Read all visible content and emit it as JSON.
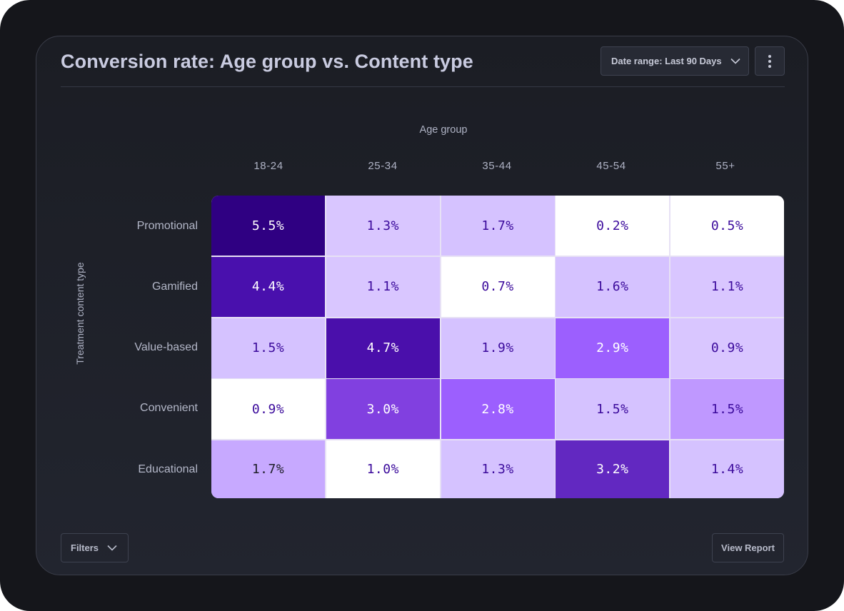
{
  "header": {
    "title": "Conversion rate: Age group vs. Content type",
    "date_range_label": "Date range: Last 90 Days",
    "date_range_icon": "chevron-down-icon",
    "more_icon": "more-vertical-icon"
  },
  "footer": {
    "filters_label": "Filters",
    "filters_icon": "chevron-down-icon",
    "view_report_label": "View Report"
  },
  "colors": {
    "background": "#15161b",
    "card": "#1e2028",
    "text_muted": "#aeb2c4",
    "scale_min": "#ffffff",
    "scale_mid": "#9b5fff",
    "scale_max": "#2f0082"
  },
  "chart_data": {
    "type": "heatmap",
    "title": "Conversion rate: Age group vs. Content type",
    "xlabel": "Age group",
    "ylabel": "Treatment content type",
    "x_categories": [
      "18-24",
      "25-34",
      "35-44",
      "45-54",
      "55+"
    ],
    "y_categories": [
      "Promotional",
      "Gamified",
      "Value-based",
      "Convenient",
      "Educational"
    ],
    "unit": "%",
    "values": [
      [
        5.5,
        1.3,
        1.7,
        0.2,
        0.5
      ],
      [
        4.4,
        1.1,
        0.7,
        1.6,
        1.1
      ],
      [
        1.5,
        4.7,
        1.9,
        2.9,
        0.9
      ],
      [
        0.9,
        3.0,
        2.8,
        1.5,
        1.5
      ],
      [
        1.7,
        1.0,
        1.3,
        3.2,
        1.4
      ]
    ],
    "cell_labels": [
      [
        "5.5%",
        "1.3%",
        "1.7%",
        "0.2%",
        "0.5%"
      ],
      [
        "4.4%",
        "1.1%",
        "0.7%",
        "1.6%",
        "1.1%"
      ],
      [
        "1.5%",
        "4.7%",
        "1.9%",
        "2.9%",
        "0.9%"
      ],
      [
        "0.9%",
        "3.0%",
        "2.8%",
        "1.5%",
        "1.5%"
      ],
      [
        "1.7%",
        "1.0%",
        "1.3%",
        "3.2%",
        "1.4%"
      ]
    ],
    "cell_colors": [
      [
        "#2f0082",
        "#d9c6ff",
        "#d5c2ff",
        "#ffffff",
        "#ffffff"
      ],
      [
        "#4910ad",
        "#d9c6ff",
        "#ffffff",
        "#d5c2ff",
        "#d9c6ff"
      ],
      [
        "#d5c2ff",
        "#4a0fab",
        "#d5c2ff",
        "#9c5ffe",
        "#d9c6ff"
      ],
      [
        "#ffffff",
        "#8140e0",
        "#9c5ffe",
        "#d5c2ff",
        "#bf98ff"
      ],
      [
        "#c7a9ff",
        "#ffffff",
        "#d5c2ff",
        "#6228c1",
        "#d5c2ff"
      ]
    ],
    "grid": false,
    "legend": "none"
  }
}
